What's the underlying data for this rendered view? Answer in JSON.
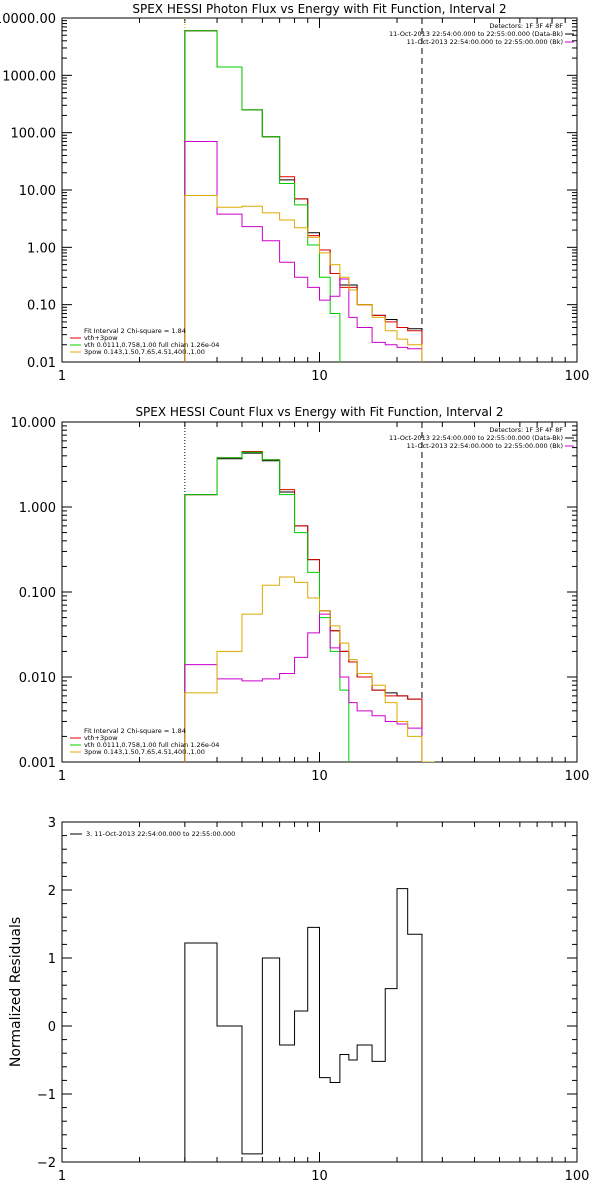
{
  "chart_data": [
    {
      "type": "line",
      "step": true,
      "title": "SPEX HESSI Photon Flux vs Energy with Fit Function, Interval 2",
      "xscale": "log",
      "yscale": "log",
      "xlim": [
        1,
        100
      ],
      "ylim": [
        0.01,
        10000
      ],
      "xticks": [
        {
          "v": 1,
          "label": "1"
        },
        {
          "v": 10,
          "label": "10"
        },
        {
          "v": 100,
          "label": "100"
        }
      ],
      "yticks": [
        {
          "v": 0.01,
          "label": "0.01"
        },
        {
          "v": 0.1,
          "label": "0.10"
        },
        {
          "v": 1,
          "label": "1.00"
        },
        {
          "v": 10,
          "label": "10.00"
        },
        {
          "v": 100,
          "label": "100.00"
        },
        {
          "v": 1000,
          "label": "1000.00"
        },
        {
          "v": 10000,
          "label": "10000.00"
        }
      ],
      "vlines": [
        {
          "x": 3,
          "style": "dotted",
          "color": "#e0a000"
        },
        {
          "x": 25,
          "style": "dashed",
          "color": "#000000"
        }
      ],
      "edges": [
        3,
        4,
        5,
        6,
        7,
        8,
        9,
        10,
        11,
        12,
        13,
        14,
        16,
        18,
        20,
        22,
        25
      ],
      "series": [
        {
          "color": "#000000",
          "values": [
            6000,
            1400,
            250,
            85,
            15,
            7,
            1.8,
            0.9,
            0.35,
            0.22,
            0.22,
            0.1,
            0.065,
            0.055,
            0.04,
            0.038
          ]
        },
        {
          "color": "#dd0000",
          "values": [
            6000,
            1400,
            250,
            85,
            17,
            7,
            1.6,
            0.9,
            0.35,
            0.2,
            0.2,
            0.1,
            0.065,
            0.05,
            0.04,
            0.035
          ]
        },
        {
          "color": "#00cc00",
          "values": [
            6000,
            1400,
            250,
            85,
            13,
            5.5,
            1.1,
            0.3,
            0.07,
            0.007
          ]
        },
        {
          "color": "#cc00cc",
          "values": [
            70,
            3.8,
            2.3,
            1.3,
            0.55,
            0.3,
            0.2,
            0.12,
            0.14,
            0.28,
            0.06,
            0.04,
            0.022,
            0.02,
            0.018,
            0.017
          ]
        },
        {
          "color": "#ddaa00",
          "values": [
            8,
            5,
            5.2,
            4,
            3,
            2.2,
            1.5,
            0.8,
            0.5,
            0.3,
            0.18,
            0.1,
            0.06,
            0.035,
            0.025,
            0.02
          ]
        }
      ],
      "legend_right": [
        {
          "text": "Detectors: 1F 3F 4F 8F",
          "color": "#000000"
        },
        {
          "text": "11-Oct-2013 22:54:00.000 to 22:55:00.000 (Data-Bk)",
          "color": "#000000"
        },
        {
          "text": "11-Oct-2013 22:54:00.000 to 22:55:00.000 (Bk)",
          "color": "#cc00cc"
        }
      ],
      "legend_left": [
        {
          "text": "Fit Interval 2   Chi-square = 1.84",
          "color": "#000000"
        },
        {
          "text": "vth+3pow",
          "color": "#dd0000"
        },
        {
          "text": "vth 0.0111,0.758,1.00  full chian 1.26e-04",
          "color": "#00cc00"
        },
        {
          "text": "3pow 0.143,1.50,7.65,4.51,400.,1.00",
          "color": "#ddaa00"
        }
      ]
    },
    {
      "type": "line",
      "step": true,
      "title": "SPEX HESSI Count Flux vs Energy with Fit Function, Interval 2",
      "xscale": "log",
      "yscale": "log",
      "xlim": [
        1,
        100
      ],
      "ylim": [
        0.001,
        10
      ],
      "xticks": [
        {
          "v": 1,
          "label": "1"
        },
        {
          "v": 10,
          "label": "10"
        },
        {
          "v": 100,
          "label": "100"
        }
      ],
      "yticks": [
        {
          "v": 0.001,
          "label": "0.001"
        },
        {
          "v": 0.01,
          "label": "0.010"
        },
        {
          "v": 0.1,
          "label": "0.100"
        },
        {
          "v": 1,
          "label": "1.000"
        },
        {
          "v": 10,
          "label": "10.000"
        }
      ],
      "vlines": [
        {
          "x": 3,
          "style": "dotted",
          "color": "#000000"
        },
        {
          "x": 25,
          "style": "dashed",
          "color": "#000000"
        }
      ],
      "edges": [
        3,
        4,
        5,
        6,
        7,
        8,
        9,
        10,
        11,
        12,
        13,
        14,
        16,
        18,
        20,
        22,
        25,
        28
      ],
      "series": [
        {
          "color": "#000000",
          "values": [
            1.4,
            3.7,
            4.3,
            3.5,
            1.5,
            0.6,
            0.24,
            0.06,
            0.035,
            0.02,
            0.015,
            0.01,
            0.007,
            0.0065,
            0.006,
            0.0055
          ]
        },
        {
          "color": "#dd0000",
          "values": [
            1.4,
            3.8,
            4.5,
            3.6,
            1.6,
            0.6,
            0.24,
            0.06,
            0.035,
            0.02,
            0.015,
            0.01,
            0.007,
            0.006,
            0.006,
            0.0055
          ]
        },
        {
          "color": "#00cc00",
          "values": [
            1.4,
            3.8,
            4.4,
            3.6,
            1.4,
            0.5,
            0.17,
            0.05,
            0.02,
            0.007
          ]
        },
        {
          "color": "#cc00cc",
          "values": [
            0.014,
            0.0095,
            0.009,
            0.0095,
            0.011,
            0.017,
            0.033,
            0.055,
            0.022,
            0.01,
            0.005,
            0.004,
            0.0035,
            0.003,
            0.0028,
            0.0025
          ]
        },
        {
          "color": "#ddaa00",
          "values": [
            0.0065,
            0.02,
            0.055,
            0.12,
            0.15,
            0.13,
            0.085,
            0.06,
            0.04,
            0.025,
            0.016,
            0.011,
            0.008,
            0.005,
            0.003,
            0.002,
            0.001
          ]
        }
      ],
      "legend_right": [
        {
          "text": "Detectors: 1F 3F 4F 8F",
          "color": "#000000"
        },
        {
          "text": "11-Oct-2013 22:54:00.000 to 22:55:00.000 (Data-Bk)",
          "color": "#000000"
        },
        {
          "text": "11-Oct-2013 22:54:00.000 to 22:55:00.000 (Bk)",
          "color": "#cc00cc"
        }
      ],
      "legend_left": [
        {
          "text": "Fit Interval 2   Chi-square = 1.84",
          "color": "#000000"
        },
        {
          "text": "vth+3pow",
          "color": "#dd0000"
        },
        {
          "text": "vth 0.0111,0.758,1.00  full chian 1.26e-04",
          "color": "#00cc00"
        },
        {
          "text": "3pow 0.143,1.50,7.65,4.51,400.,1.00",
          "color": "#ddaa00"
        }
      ]
    },
    {
      "type": "line",
      "step": true,
      "title": "",
      "ylabel": "Normalized Residuals",
      "xscale": "log",
      "yscale": "linear",
      "xlim": [
        1,
        100
      ],
      "ylim": [
        -2,
        3
      ],
      "xticks": [
        {
          "v": 1,
          "label": "1"
        },
        {
          "v": 10,
          "label": "10"
        },
        {
          "v": 100,
          "label": "100"
        }
      ],
      "yticks": [
        {
          "v": -2,
          "label": "−2"
        },
        {
          "v": -1,
          "label": "−1"
        },
        {
          "v": 0,
          "label": "0"
        },
        {
          "v": 1,
          "label": "1"
        },
        {
          "v": 2,
          "label": "2"
        },
        {
          "v": 3,
          "label": "3"
        }
      ],
      "vlines": [],
      "edges": [
        3,
        4,
        5,
        6,
        7,
        8,
        9,
        10,
        11,
        12,
        13,
        14,
        16,
        18,
        20,
        22,
        25
      ],
      "series": [
        {
          "color": "#000000",
          "values": [
            1.22,
            0.0,
            -1.88,
            1.0,
            -0.28,
            0.22,
            1.45,
            -0.76,
            -0.83,
            -0.42,
            -0.5,
            -0.28,
            -0.52,
            0.55,
            2.02,
            1.35
          ],
          "drop_to": -2
        }
      ],
      "legend_right": [],
      "legend_left": [],
      "legend_top_left": [
        {
          "text": "3. 11-Oct-2013 22:54:00.000 to 22:55:00.000",
          "color": "#000000"
        }
      ]
    }
  ]
}
